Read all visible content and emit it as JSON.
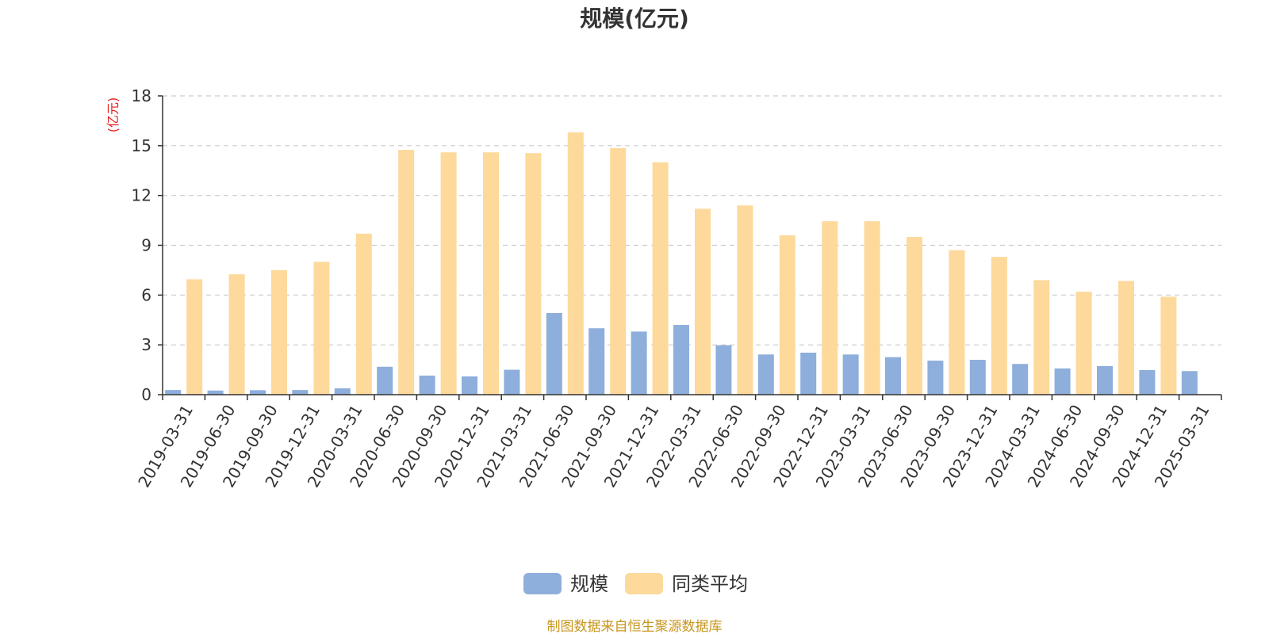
{
  "chart_data": {
    "type": "bar",
    "title": "规模(亿元)",
    "ylabel": "(亿元)",
    "ylim": [
      0,
      18
    ],
    "yticks": [
      0,
      3,
      6,
      9,
      12,
      15,
      18
    ],
    "grid": true,
    "legend_position": "bottom",
    "categories": [
      "2019-03-31",
      "2019-06-30",
      "2019-09-30",
      "2019-12-31",
      "2020-03-31",
      "2020-06-30",
      "2020-09-30",
      "2020-12-31",
      "2021-03-31",
      "2021-06-30",
      "2021-09-30",
      "2021-12-31",
      "2022-03-31",
      "2022-06-30",
      "2022-09-30",
      "2022-12-31",
      "2023-03-31",
      "2023-06-30",
      "2023-09-30",
      "2023-12-31",
      "2024-03-31",
      "2024-06-30",
      "2024-09-30",
      "2024-12-31",
      "2025-03-31"
    ],
    "series": [
      {
        "name": "规模",
        "color": "#8eaedc",
        "values": [
          0.28,
          0.25,
          0.27,
          0.28,
          0.38,
          1.68,
          1.15,
          1.1,
          1.5,
          4.92,
          4.0,
          3.8,
          4.2,
          2.98,
          2.42,
          2.53,
          2.42,
          2.26,
          2.05,
          2.1,
          1.85,
          1.58,
          1.72,
          1.48,
          1.42
        ]
      },
      {
        "name": "同类平均",
        "color": "#fdd99b",
        "values": [
          6.95,
          7.25,
          7.5,
          8.0,
          9.7,
          14.75,
          14.6,
          14.6,
          14.55,
          15.8,
          14.85,
          14.0,
          11.2,
          11.4,
          9.6,
          10.45,
          10.45,
          9.5,
          8.7,
          8.3,
          6.9,
          6.2,
          6.85,
          5.9,
          null
        ]
      }
    ]
  },
  "source_text": "制图数据来自恒生聚源数据库"
}
